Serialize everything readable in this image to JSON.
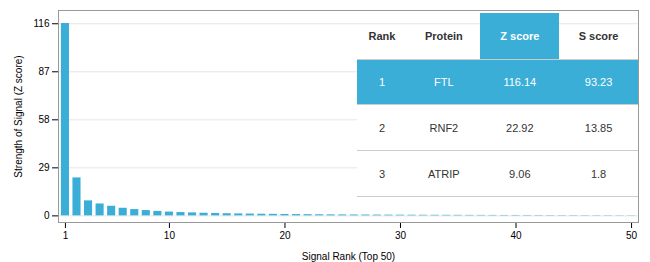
{
  "chart_data": {
    "type": "bar",
    "xlabel": "Signal Rank (Top 50)",
    "ylabel": "Strength of Signal (Z score)",
    "x": [
      1,
      2,
      3,
      4,
      5,
      6,
      7,
      8,
      9,
      10,
      11,
      12,
      13,
      14,
      15,
      16,
      17,
      18,
      19,
      20,
      21,
      22,
      23,
      24,
      25,
      26,
      27,
      28,
      29,
      30,
      31,
      32,
      33,
      34,
      35,
      36,
      37,
      38,
      39,
      40,
      41,
      42,
      43,
      44,
      45,
      46,
      47,
      48,
      49,
      50
    ],
    "values": [
      116.14,
      22.92,
      9.06,
      7.2,
      5.8,
      4.6,
      3.8,
      3.2,
      2.7,
      2.3,
      2.0,
      1.8,
      1.6,
      1.45,
      1.3,
      1.2,
      1.1,
      1.0,
      0.92,
      0.85,
      0.78,
      0.72,
      0.67,
      0.62,
      0.58,
      0.54,
      0.51,
      0.48,
      0.45,
      0.42,
      0.4,
      0.38,
      0.36,
      0.34,
      0.32,
      0.3,
      0.28,
      0.27,
      0.26,
      0.25,
      0.24,
      0.23,
      0.22,
      0.21,
      0.2,
      0.19,
      0.18,
      0.17,
      0.16,
      0.15
    ],
    "color": "#3BAED8",
    "xlim": [
      0.4,
      50.6
    ],
    "xticks": [
      1,
      10,
      20,
      30,
      40,
      50
    ],
    "ylim": [
      -4,
      124
    ],
    "yticks": [
      0,
      29,
      58,
      87,
      116
    ],
    "grid": true,
    "table": {
      "headers": [
        "Rank",
        "Protein",
        "Z score",
        "S score"
      ],
      "rows": [
        [
          "1",
          "FTL",
          "116.14",
          "93.23"
        ],
        [
          "2",
          "RNF2",
          "22.92",
          "13.85"
        ],
        [
          "3",
          "ATRIP",
          "9.06",
          "1.8"
        ]
      ],
      "color": "#3BAED8"
    }
  }
}
